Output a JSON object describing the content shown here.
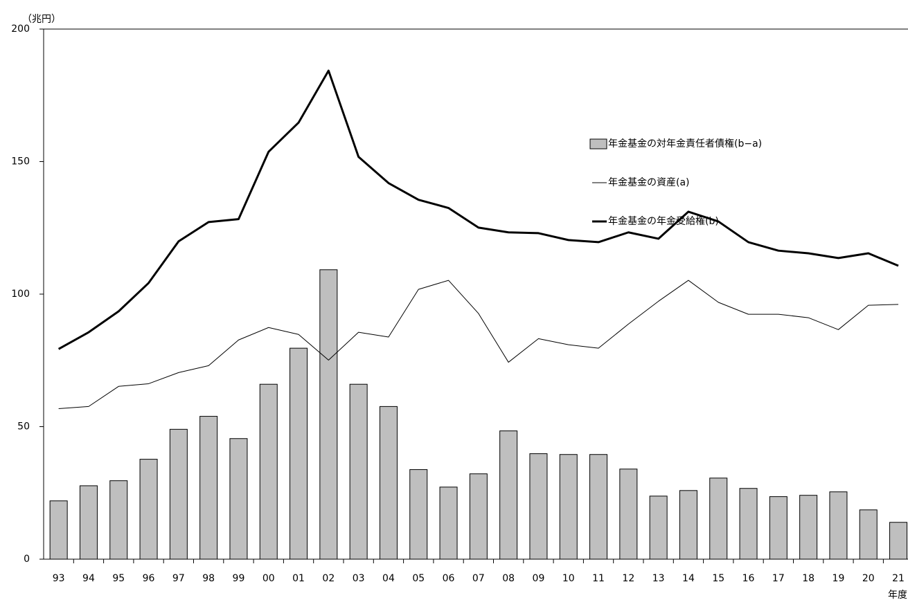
{
  "chart_data": {
    "type": "bar",
    "unit_label": "（兆円）",
    "x_label": "年度",
    "categories": [
      "93",
      "94",
      "95",
      "96",
      "97",
      "98",
      "99",
      "00",
      "01",
      "02",
      "03",
      "04",
      "05",
      "06",
      "07",
      "08",
      "09",
      "10",
      "11",
      "12",
      "13",
      "14",
      "15",
      "16",
      "17",
      "18",
      "19",
      "20",
      "21"
    ],
    "series": [
      {
        "name": "年金基金の対年金責任者債権(b−a)",
        "type": "bar",
        "color": "#bfbfbf",
        "values": [
          22,
          27.7,
          29.6,
          37.7,
          49,
          53.9,
          45.5,
          66,
          79.6,
          109.2,
          66,
          57.6,
          33.8,
          27.2,
          32.2,
          48.4,
          39.8,
          39.5,
          39.5,
          34,
          23.8,
          25.9,
          30.6,
          26.7,
          23.6,
          24.1,
          25.4,
          18.6,
          13.9
        ]
      },
      {
        "name": "年金基金の資産(a)",
        "type": "line",
        "color": "#000000",
        "line_width": 1,
        "values": [
          56.8,
          57.6,
          65.2,
          66.2,
          70.4,
          73,
          82.7,
          87.4,
          84.8,
          75.1,
          85.6,
          83.8,
          101.8,
          105.2,
          92.7,
          74.3,
          83.2,
          80.9,
          79.6,
          88.7,
          97.3,
          105.2,
          96.9,
          92.4,
          92.4,
          91.1,
          86.6,
          95.8,
          96.1
        ]
      },
      {
        "name": "年金基金の年金受給権(b)",
        "type": "line",
        "color": "#000000",
        "line_width": 3,
        "values": [
          79.3,
          85.6,
          93.5,
          104.2,
          119.9,
          127.2,
          128.3,
          153.7,
          164.7,
          184.3,
          151.8,
          141.9,
          135.6,
          132.5,
          125.1,
          123.3,
          123,
          120.4,
          119.6,
          123.3,
          120.9,
          131.1,
          127.4,
          119.6,
          116.4,
          115.4,
          113.6,
          115.4,
          110.7
        ]
      }
    ],
    "ylim": [
      0,
      200
    ],
    "yticks": [
      0,
      50,
      100,
      150,
      200
    ],
    "grid": false,
    "legend": "top-right"
  }
}
